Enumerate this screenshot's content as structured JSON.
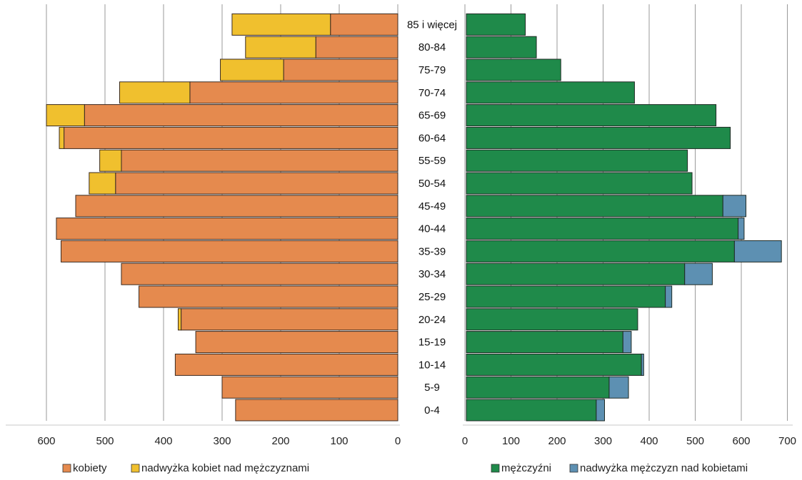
{
  "chart_data": {
    "type": "bar",
    "categories": [
      "0-4",
      "5-9",
      "10-14",
      "15-19",
      "20-24",
      "25-29",
      "30-34",
      "35-39",
      "40-44",
      "45-49",
      "50-54",
      "55-59",
      "60-64",
      "65-69",
      "70-74",
      "75-79",
      "80-84",
      "85 i więcej"
    ],
    "left": {
      "xlim": [
        0,
        600
      ],
      "ticks": [
        "0",
        "100",
        "200",
        "300",
        "400",
        "500",
        "600"
      ],
      "series": [
        {
          "name": "kobiety",
          "color": "#e58a4e",
          "values": [
            277,
            300,
            380,
            345,
            370,
            442,
            472,
            575,
            583,
            550,
            482,
            472,
            570,
            535,
            355,
            195,
            140,
            115
          ]
        },
        {
          "name": "nadwyżka kobiet nad mężczyznami",
          "color": "#f0c02e",
          "values": [
            0,
            0,
            0,
            0,
            5,
            0,
            0,
            0,
            0,
            0,
            45,
            37,
            8,
            65,
            120,
            108,
            120,
            168
          ]
        }
      ]
    },
    "right": {
      "xlim": [
        0,
        700
      ],
      "ticks": [
        "0",
        "100",
        "200",
        "300",
        "400",
        "500",
        "600",
        "700"
      ],
      "series": [
        {
          "name": "mężczyźni",
          "color": "#1f8a4a",
          "values": [
            282,
            310,
            380,
            340,
            372,
            432,
            474,
            582,
            590,
            557,
            490,
            480,
            573,
            542,
            365,
            205,
            152,
            128
          ]
        },
        {
          "name": "nadwyżka mężczyzn nad kobietami",
          "color": "#5d90b2",
          "values": [
            18,
            42,
            5,
            18,
            0,
            14,
            60,
            102,
            13,
            50,
            0,
            0,
            0,
            0,
            0,
            0,
            0,
            0
          ]
        }
      ]
    }
  }
}
